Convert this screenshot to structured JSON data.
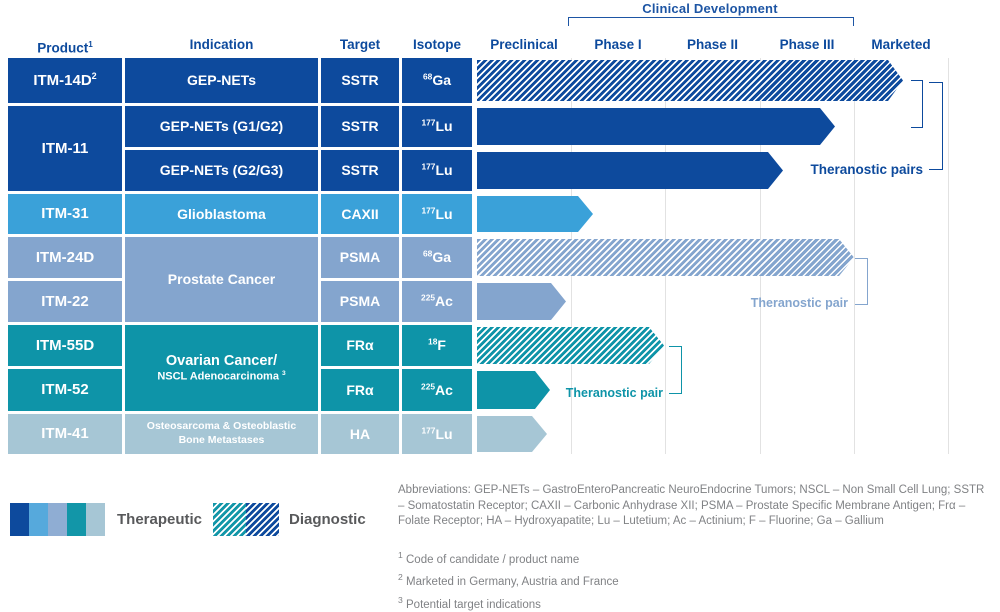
{
  "palette": {
    "navy": "#0d4a9d",
    "sky": "#3aa1d9",
    "steel": "#84a5ce",
    "teal": "#0e94a8",
    "light": "#a6c6d5",
    "gridline": "#e2e2e2",
    "heading_text": "#0d4a9d",
    "note_text": "#808285",
    "legend_text": "#58595b"
  },
  "headers": {
    "product": "Product",
    "product_sup": "1",
    "indication": "Indication",
    "target": "Target",
    "isotope": "Isotope"
  },
  "chart_data": {
    "type": "bar",
    "variant": "pipeline",
    "stage_group_label": "Clinical Development",
    "stages": [
      "Preclinical",
      "Phase I",
      "Phase II",
      "Phase III",
      "Marketed"
    ],
    "extent_scale": "0=start Preclinical, 1=end Preclinical, 2=end Phase I, 3=end Phase II, 4=end Phase III, 5=end Marketed",
    "rows": [
      {
        "product": "ITM-14D",
        "product_sup": "2",
        "indication": "GEP-NETs",
        "target": "SSTR",
        "isotope_mass": "68",
        "isotope_symbol": "Ga",
        "modality": "diagnostic",
        "color": "navy",
        "stage_reached": "Marketed",
        "extent": 4.52
      },
      {
        "product": "ITM-11",
        "indication": "GEP-NETs (G1/G2)",
        "target": "SSTR",
        "isotope_mass": "177",
        "isotope_symbol": "Lu",
        "modality": "therapeutic",
        "color": "navy",
        "stage_reached": "Phase III",
        "extent": 3.8
      },
      {
        "product": "ITM-11",
        "indication": "GEP-NETs (G2/G3)",
        "target": "SSTR",
        "isotope_mass": "177",
        "isotope_symbol": "Lu",
        "modality": "therapeutic",
        "color": "navy",
        "stage_reached": "Phase III",
        "extent": 3.25
      },
      {
        "product": "ITM-31",
        "indication": "Glioblastoma",
        "target": "CAXII",
        "isotope_mass": "177",
        "isotope_symbol": "Lu",
        "modality": "therapeutic",
        "color": "sky",
        "stage_reached": "Phase I",
        "extent": 1.23
      },
      {
        "product": "ITM-24D",
        "indication": "Prostate Cancer",
        "target": "PSMA",
        "isotope_mass": "68",
        "isotope_symbol": "Ga",
        "modality": "diagnostic",
        "color": "steel",
        "stage_reached": "Phase III",
        "extent": 4.0
      },
      {
        "product": "ITM-22",
        "indication": "Prostate Cancer",
        "target": "PSMA",
        "isotope_mass": "225",
        "isotope_symbol": "Ac",
        "modality": "therapeutic",
        "color": "steel",
        "stage_reached": "Preclinical",
        "extent": 0.95
      },
      {
        "product": "ITM-55D",
        "indication": "Ovarian Cancer/",
        "indication2": "NSCL Adenocarcinoma",
        "indication2_sup": "3",
        "target": "FRα",
        "isotope_mass": "18",
        "isotope_symbol": "F",
        "modality": "diagnostic",
        "color": "teal",
        "stage_reached": "Phase I",
        "extent": 1.98
      },
      {
        "product": "ITM-52",
        "indication": "Ovarian Cancer/",
        "indication2": "NSCL Adenocarcinoma",
        "indication2_sup": "3",
        "target": "FRα",
        "isotope_mass": "225",
        "isotope_symbol": "Ac",
        "modality": "therapeutic",
        "color": "teal",
        "stage_reached": "Preclinical",
        "extent": 0.78
      },
      {
        "product": "ITM-41",
        "indication": "Osteosarcoma & Osteoblastic",
        "indication2": "Bone Metastases",
        "target": "HA",
        "isotope_mass": "177",
        "isotope_symbol": "Lu",
        "modality": "therapeutic",
        "color": "light",
        "stage_reached": "Preclinical",
        "extent": 0.74
      }
    ]
  },
  "annotations": {
    "theranostic_pairs": "Theranostic pairs",
    "theranostic_pair_prostate": "Theranostic pair",
    "theranostic_pair_ovarian": "Theranostic pair"
  },
  "legend": {
    "therapeutic_label": "Therapeutic",
    "diagnostic_label": "Diagnostic",
    "therapeutic_colors": [
      "#0d4a9d",
      "#56a9dc",
      "#8fadd3",
      "#1296a8",
      "#a6c6d5"
    ],
    "diagnostic_colors": [
      "#1296a8",
      "#0d4a9d"
    ]
  },
  "notes": {
    "abbreviations": "Abbreviations: GEP-NETs – GastroEnteroPancreatic NeuroEndocrine Tumors; NSCL – Non Small Cell Lung; SSTR – Somatostatin Receptor; CAXII – Carbonic Anhydrase XII; PSMA – Prostate Specific Membrane Antigen; Frα – Folate Receptor; HA – Hydroxyapatite; Lu – Lutetium; Ac – Actinium; F – Fluorine; Ga – Gallium",
    "footnotes": [
      {
        "sup": "1",
        "text": "Code of candidate / product name"
      },
      {
        "sup": "2",
        "text": "Marketed in Germany, Austria and France"
      },
      {
        "sup": "3",
        "text": "Potential target indications"
      }
    ]
  }
}
